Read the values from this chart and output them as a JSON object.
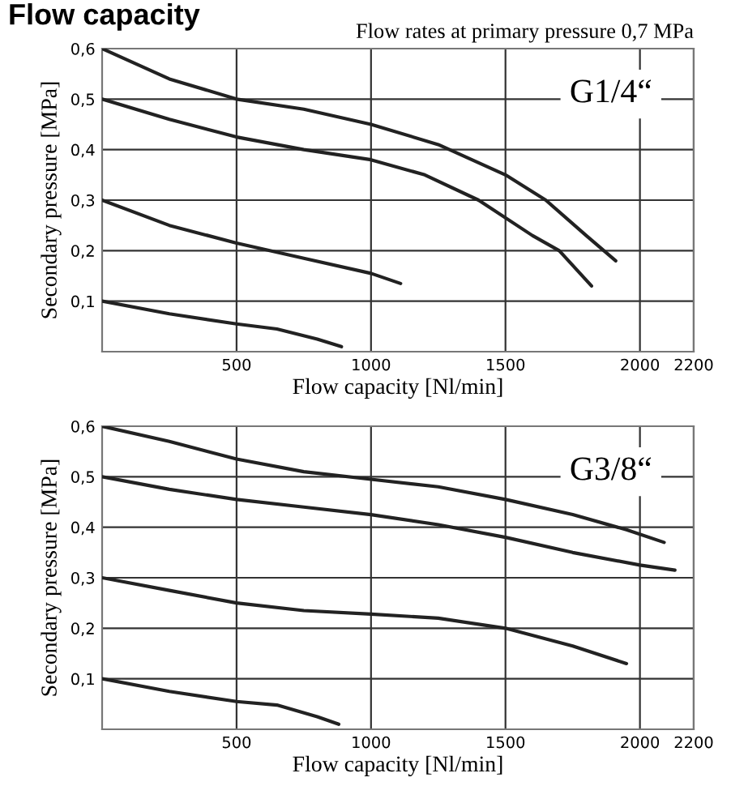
{
  "chart_data": [
    {
      "type": "line",
      "title": "Flow capacity",
      "subtitle": "Flow rates at primary pressure 0,7 MPa",
      "xlabel": "Flow capacity [Nl/min]",
      "ylabel": "Secondary pressure [MPa]",
      "annotations": [
        "G1/4“"
      ],
      "xlim": [
        0,
        2200
      ],
      "ylim": [
        0,
        0.6
      ],
      "xticks": [
        500,
        1000,
        1500,
        2000,
        2200
      ],
      "yticks": [
        {
          "value": 0.1,
          "label": "0,1"
        },
        {
          "value": 0.2,
          "label": "0,2"
        },
        {
          "value": 0.3,
          "label": "0,3"
        },
        {
          "value": 0.4,
          "label": "0,4"
        },
        {
          "value": 0.5,
          "label": "0,5"
        },
        {
          "value": 0.6,
          "label": "0,6"
        }
      ],
      "grid": true,
      "line_style": "solid",
      "series": [
        {
          "color": "#222222",
          "x": [
            0,
            250,
            500,
            750,
            1000,
            1250,
            1500,
            1650,
            1800,
            1910
          ],
          "values": [
            0.6,
            0.54,
            0.5,
            0.48,
            0.45,
            0.41,
            0.35,
            0.3,
            0.23,
            0.18
          ]
        },
        {
          "color": "#222222",
          "x": [
            0,
            250,
            500,
            750,
            1000,
            1200,
            1400,
            1600,
            1700,
            1820
          ],
          "values": [
            0.5,
            0.46,
            0.425,
            0.4,
            0.38,
            0.35,
            0.3,
            0.23,
            0.2,
            0.13
          ]
        },
        {
          "color": "#222222",
          "x": [
            0,
            250,
            500,
            750,
            1000,
            1110
          ],
          "values": [
            0.3,
            0.25,
            0.215,
            0.185,
            0.155,
            0.135
          ]
        },
        {
          "color": "#222222",
          "x": [
            0,
            250,
            500,
            650,
            800,
            890
          ],
          "values": [
            0.1,
            0.075,
            0.055,
            0.045,
            0.025,
            0.01
          ]
        }
      ]
    },
    {
      "type": "line",
      "xlabel": "Flow capacity [Nl/min]",
      "ylabel": "Secondary pressure [MPa]",
      "annotations": [
        "G3/8“"
      ],
      "xlim": [
        0,
        2200
      ],
      "ylim": [
        0,
        0.6
      ],
      "xticks": [
        500,
        1000,
        1500,
        2000,
        2200
      ],
      "yticks": [
        {
          "value": 0.1,
          "label": "0,1"
        },
        {
          "value": 0.2,
          "label": "0,2"
        },
        {
          "value": 0.3,
          "label": "0,3"
        },
        {
          "value": 0.4,
          "label": "0,4"
        },
        {
          "value": 0.5,
          "label": "0,5"
        },
        {
          "value": 0.6,
          "label": "0,6"
        }
      ],
      "grid": true,
      "line_style": "solid",
      "series": [
        {
          "color": "#222222",
          "x": [
            0,
            250,
            500,
            750,
            1000,
            1250,
            1500,
            1750,
            1950,
            2090
          ],
          "values": [
            0.6,
            0.57,
            0.535,
            0.51,
            0.495,
            0.48,
            0.455,
            0.425,
            0.395,
            0.37
          ]
        },
        {
          "color": "#222222",
          "x": [
            0,
            250,
            500,
            750,
            1000,
            1250,
            1500,
            1750,
            2000,
            2130
          ],
          "values": [
            0.5,
            0.475,
            0.455,
            0.44,
            0.425,
            0.405,
            0.38,
            0.35,
            0.325,
            0.315
          ]
        },
        {
          "color": "#222222",
          "x": [
            0,
            250,
            500,
            750,
            1000,
            1250,
            1500,
            1750,
            1950
          ],
          "values": [
            0.3,
            0.275,
            0.25,
            0.235,
            0.228,
            0.22,
            0.2,
            0.165,
            0.13
          ]
        },
        {
          "color": "#222222",
          "x": [
            0,
            250,
            500,
            650,
            800,
            880
          ],
          "values": [
            0.1,
            0.075,
            0.055,
            0.048,
            0.025,
            0.01
          ]
        }
      ]
    }
  ]
}
